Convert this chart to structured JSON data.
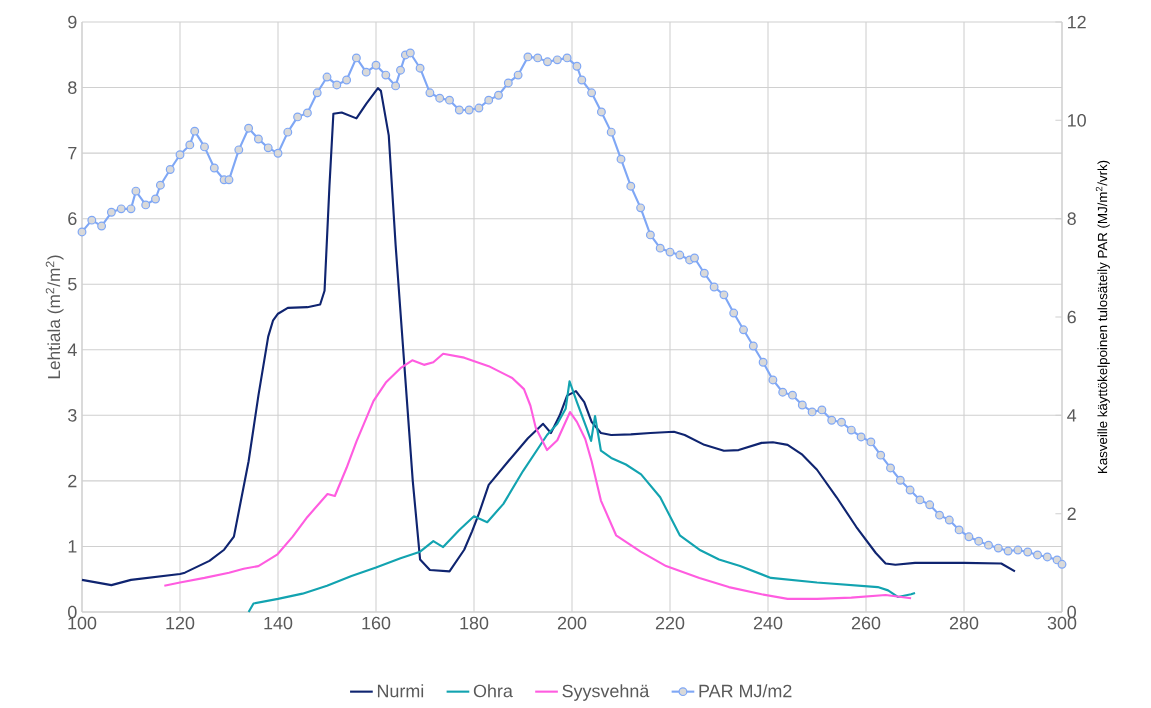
{
  "chart_data": {
    "type": "line",
    "ylabel": "Lehtiala (m$^{2}$/m$^{2}$)",
    "y2label": "Kasveille käyttökelpoinen tulosäteily PAR (MJ/m$^{2}$/vrk)",
    "xlim": [
      100,
      300
    ],
    "xticks": [
      100,
      120,
      140,
      160,
      180,
      200,
      220,
      240,
      260,
      280,
      300
    ],
    "ylim": [
      0,
      9
    ],
    "yticks": [
      0,
      1,
      2,
      3,
      4,
      5,
      6,
      7,
      8,
      9
    ],
    "y2lim": [
      0,
      12
    ],
    "y2ticks": [
      0,
      2,
      4,
      6,
      8,
      10,
      12
    ],
    "grid": true,
    "legend": "bottom",
    "marker": "none",
    "line_style": "solid",
    "series": [
      {
        "name": "Nurmi",
        "color": "#0f2470",
        "x": [
          100,
          106,
          110,
          120,
          121,
          126,
          129,
          131,
          134,
          136,
          138,
          139,
          140,
          142,
          146,
          148.6,
          149.5,
          150.5,
          151.3,
          153,
          156,
          158,
          160.4,
          161,
          162.6,
          164,
          165.8,
          167.5,
          169,
          171,
          175,
          178,
          179.6,
          181,
          183,
          187,
          191,
          194.1,
          195.7,
          197.5,
          199,
          200.8,
          202.5,
          204,
          205.9,
          208,
          212,
          216,
          220.8,
          223,
          227,
          231,
          234,
          238.7,
          241,
          244,
          247,
          250,
          254,
          258,
          262,
          264,
          266,
          270,
          280,
          287.6,
          290.4
        ],
        "values": [
          0.49,
          0.41,
          0.49,
          0.58,
          0.6,
          0.78,
          0.95,
          1.15,
          2.3,
          3.3,
          4.2,
          4.45,
          4.55,
          4.64,
          4.65,
          4.69,
          4.9,
          6.5,
          7.6,
          7.62,
          7.53,
          7.75,
          7.99,
          7.95,
          7.27,
          5.6,
          3.75,
          2.0,
          0.8,
          0.64,
          0.62,
          0.95,
          1.23,
          1.5,
          1.94,
          2.3,
          2.65,
          2.87,
          2.73,
          3.0,
          3.3,
          3.37,
          3.2,
          2.9,
          2.73,
          2.7,
          2.71,
          2.73,
          2.75,
          2.7,
          2.55,
          2.46,
          2.47,
          2.58,
          2.59,
          2.55,
          2.4,
          2.17,
          1.75,
          1.3,
          0.9,
          0.74,
          0.72,
          0.75,
          0.75,
          0.74,
          0.62
        ]
      },
      {
        "name": "Ohra",
        "color": "#12a3b0",
        "x": [
          134,
          135,
          140,
          145,
          150,
          155,
          160,
          165,
          169,
          171.7,
          173.7,
          177,
          180,
          182.7,
          186,
          190,
          194.9,
          197,
          198.7,
          199.5,
          201,
          203,
          203.9,
          204.7,
          205.9,
          208,
          211,
          214.1,
          218,
          222,
          226,
          230,
          234.3,
          240.6,
          250,
          262.4,
          264.5,
          266.5,
          269.2,
          270
        ],
        "values": [
          0,
          0.13,
          0.2,
          0.28,
          0.4,
          0.55,
          0.68,
          0.82,
          0.92,
          1.08,
          0.99,
          1.25,
          1.46,
          1.37,
          1.65,
          2.15,
          2.7,
          2.87,
          3.1,
          3.52,
          3.2,
          2.8,
          2.61,
          2.99,
          2.46,
          2.35,
          2.25,
          2.1,
          1.75,
          1.17,
          0.95,
          0.8,
          0.7,
          0.52,
          0.45,
          0.38,
          0.33,
          0.23,
          0.27,
          0.29
        ]
      },
      {
        "name": "Syysvehnä",
        "color": "#ff5ce0",
        "x": [
          116.8,
          120,
          125,
          130,
          133,
          136,
          139.9,
          143,
          146,
          150.1,
          151.6,
          154,
          156,
          159.5,
          162,
          165,
          167.4,
          169.8,
          171.7,
          173.7,
          178,
          183,
          187.8,
          190.2,
          191.5,
          192.6,
          194.9,
          197,
          199.6,
          201,
          202.7,
          204,
          205.9,
          209,
          214,
          219.2,
          226,
          232,
          238.7,
          244,
          250,
          257,
          264,
          269.2
        ],
        "values": [
          0.4,
          0.45,
          0.52,
          0.6,
          0.66,
          0.7,
          0.88,
          1.15,
          1.45,
          1.8,
          1.77,
          2.2,
          2.6,
          3.22,
          3.5,
          3.72,
          3.84,
          3.77,
          3.81,
          3.94,
          3.88,
          3.75,
          3.57,
          3.4,
          3.15,
          2.81,
          2.47,
          2.62,
          3.05,
          2.9,
          2.64,
          2.3,
          1.7,
          1.17,
          0.92,
          0.7,
          0.52,
          0.38,
          0.27,
          0.2,
          0.2,
          0.22,
          0.26,
          0.21
        ]
      },
      {
        "name": "PAR MJ/m2",
        "axis": "y2",
        "marker": "circle",
        "color": "#7fa7f5",
        "x": [
          100,
          102,
          104,
          106,
          108,
          110,
          111,
          113,
          115,
          116,
          118,
          120,
          122,
          123,
          125,
          127,
          129,
          130,
          132,
          134,
          136,
          138,
          140,
          142,
          144,
          146,
          148,
          150,
          152,
          154,
          156,
          158,
          160,
          162,
          164,
          165,
          166,
          167,
          169,
          171,
          173,
          175,
          177,
          179,
          181,
          183,
          185,
          187,
          189,
          191,
          193,
          195,
          197,
          199,
          201,
          202,
          204,
          206,
          208,
          210,
          212,
          214,
          216,
          218,
          220,
          222,
          224,
          225,
          227,
          229,
          231,
          233,
          235,
          237,
          239,
          241,
          243,
          245,
          247,
          249,
          251,
          253,
          255,
          257,
          259,
          261,
          263,
          265,
          267,
          269,
          271,
          273,
          275,
          277,
          279,
          281,
          283,
          285,
          287,
          289,
          291,
          293,
          295,
          297,
          299,
          300
        ],
        "values": [
          7.73,
          7.97,
          7.85,
          8.13,
          8.2,
          8.2,
          8.56,
          8.28,
          8.4,
          8.68,
          9.0,
          9.3,
          9.5,
          9.78,
          9.46,
          9.03,
          8.79,
          8.79,
          9.4,
          9.84,
          9.62,
          9.44,
          9.33,
          9.76,
          10.07,
          10.15,
          10.56,
          10.88,
          10.72,
          10.82,
          11.27,
          10.98,
          11.12,
          10.92,
          10.7,
          11.02,
          11.33,
          11.37,
          11.06,
          10.56,
          10.45,
          10.41,
          10.21,
          10.21,
          10.25,
          10.41,
          10.51,
          10.76,
          10.92,
          11.29,
          11.27,
          11.19,
          11.23,
          11.27,
          11.1,
          10.82,
          10.56,
          10.17,
          9.76,
          9.21,
          8.66,
          8.22,
          7.67,
          7.4,
          7.32,
          7.26,
          7.16,
          7.2,
          6.89,
          6.61,
          6.45,
          6.08,
          5.74,
          5.41,
          5.08,
          4.72,
          4.47,
          4.41,
          4.21,
          4.07,
          4.11,
          3.9,
          3.86,
          3.7,
          3.56,
          3.46,
          3.19,
          2.93,
          2.68,
          2.48,
          2.28,
          2.18,
          1.97,
          1.87,
          1.67,
          1.53,
          1.44,
          1.36,
          1.3,
          1.24,
          1.26,
          1.22,
          1.16,
          1.12,
          1.06,
          0.97
        ]
      }
    ]
  }
}
